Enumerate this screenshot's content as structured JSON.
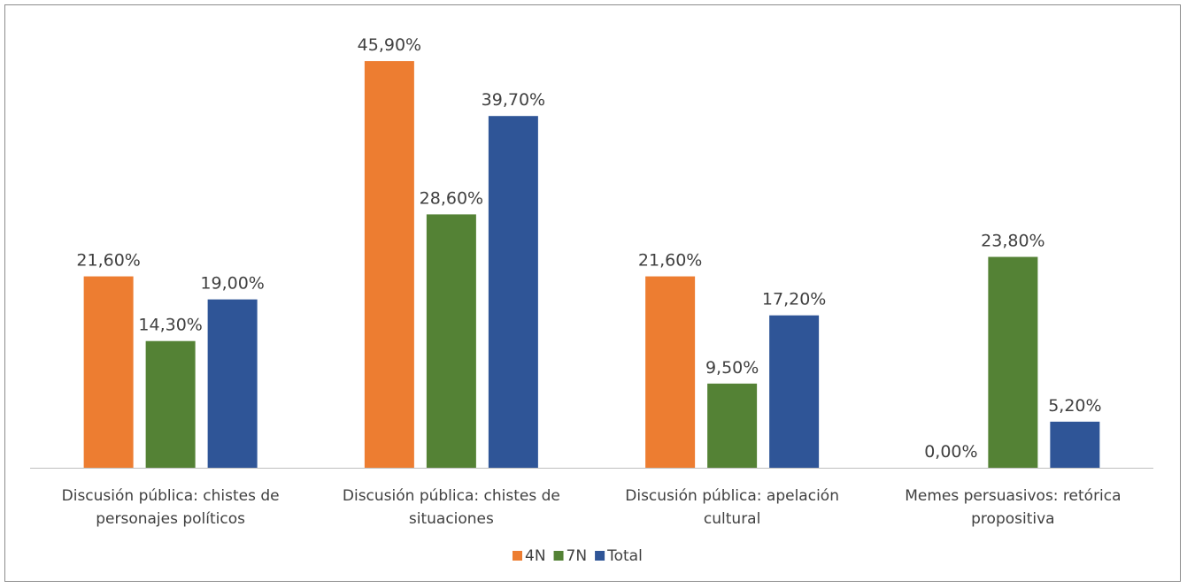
{
  "chart_data": {
    "type": "bar",
    "categories": [
      [
        "Discusión pública: chistes de",
        "personajes políticos"
      ],
      [
        "Discusión pública: chistes de",
        "situaciones"
      ],
      [
        "Discusión pública: apelación",
        "cultural"
      ],
      [
        "Memes persuasivos: retórica",
        "propositiva"
      ]
    ],
    "series": [
      {
        "name": "4N",
        "color": "#ED7D31",
        "values": [
          21.6,
          45.9,
          21.6,
          0.0
        ],
        "labels": [
          "21,60%",
          "45,90%",
          "21,60%",
          "0,00%"
        ]
      },
      {
        "name": "7N",
        "color": "#548235",
        "values": [
          14.3,
          28.6,
          9.5,
          23.8
        ],
        "labels": [
          "14,30%",
          "28,60%",
          "9,50%",
          "23,80%"
        ]
      },
      {
        "name": "Total",
        "color": "#2F5597",
        "values": [
          19.0,
          39.7,
          17.2,
          5.2
        ],
        "labels": [
          "19,00%",
          "39,70%",
          "17,20%",
          "5,20%"
        ]
      }
    ],
    "ylim": [
      0,
      50
    ],
    "grid": false,
    "legend_position": "bottom"
  }
}
